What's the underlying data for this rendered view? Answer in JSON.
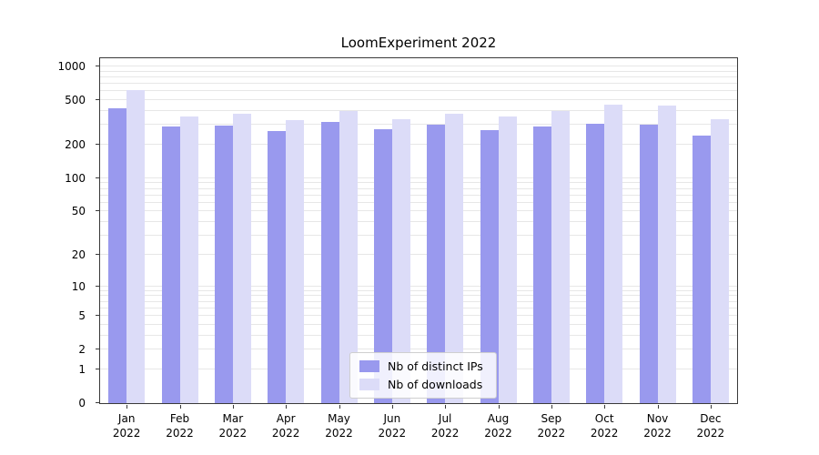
{
  "chart_data": {
    "type": "bar",
    "title": "LoomExperiment 2022",
    "categories": [
      "Jan 2022",
      "Feb 2022",
      "Mar 2022",
      "Apr 2022",
      "May 2022",
      "Jun 2022",
      "Jul 2022",
      "Aug 2022",
      "Sep 2022",
      "Oct 2022",
      "Nov 2022",
      "Dec 2022"
    ],
    "months": [
      "Jan",
      "Feb",
      "Mar",
      "Apr",
      "May",
      "Jun",
      "Jul",
      "Aug",
      "Sep",
      "Oct",
      "Nov",
      "Dec"
    ],
    "year": "2022",
    "series": [
      {
        "name": "Nb of distinct IPs",
        "color": "#9999ee",
        "values": [
          420,
          290,
          295,
          265,
          320,
          275,
          300,
          270,
          290,
          310,
          305,
          240
        ]
      },
      {
        "name": "Nb of downloads",
        "color": "#dcdcf8",
        "values": [
          610,
          355,
          375,
          335,
          400,
          340,
          380,
          360,
          400,
          460,
          445,
          340
        ]
      }
    ],
    "yticks": [
      0,
      1,
      2,
      5,
      10,
      20,
      50,
      100,
      200,
      500,
      1000
    ],
    "grid_values": [
      1,
      2,
      3,
      4,
      5,
      6,
      7,
      8,
      9,
      10,
      20,
      30,
      40,
      50,
      60,
      70,
      80,
      90,
      100,
      200,
      300,
      400,
      500,
      600,
      700,
      800,
      900,
      1000
    ],
    "ylim": [
      0,
      1000
    ],
    "yscale": "log10(value+1)",
    "grid": true,
    "legend_position": "bottom-center",
    "xlabel": "",
    "ylabel": ""
  },
  "figure": {
    "background": "#ffffff",
    "axis_color": "#3a3a3a",
    "grid_color": "#e7e7e7"
  }
}
